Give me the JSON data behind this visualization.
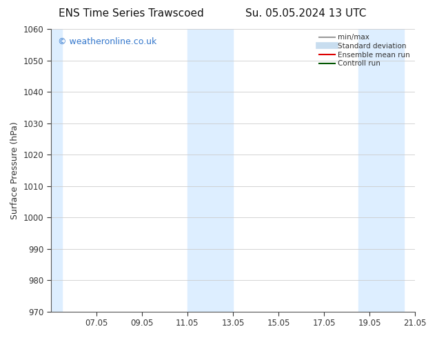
{
  "title_left": "ENS Time Series Trawscoed",
  "title_right": "Su. 05.05.2024 13 UTC",
  "ylabel": "Surface Pressure (hPa)",
  "ylim": [
    970,
    1060
  ],
  "yticks": [
    970,
    980,
    990,
    1000,
    1010,
    1020,
    1030,
    1040,
    1050,
    1060
  ],
  "x_total": 16,
  "xtick_labels": [
    "07.05",
    "09.05",
    "11.05",
    "13.05",
    "15.05",
    "17.05",
    "19.05",
    "21.05"
  ],
  "xtick_positions": [
    2,
    4,
    6,
    8,
    10,
    12,
    14,
    16
  ],
  "background_color": "#ffffff",
  "plot_bg_color": "#ffffff",
  "shaded_bands": [
    {
      "xmin": 0.0,
      "xmax": 0.5,
      "color": "#ddeeff"
    },
    {
      "xmin": 6.0,
      "xmax": 8.0,
      "color": "#ddeeff"
    },
    {
      "xmin": 13.5,
      "xmax": 15.5,
      "color": "#ddeeff"
    }
  ],
  "watermark_text": "© weatheronline.co.uk",
  "watermark_color": "#3377cc",
  "legend_items": [
    {
      "label": "min/max",
      "color": "#999999",
      "lw": 1.5
    },
    {
      "label": "Standard deviation",
      "color": "#c8ddef",
      "lw": 7
    },
    {
      "label": "Ensemble mean run",
      "color": "#dd0000",
      "lw": 1.5
    },
    {
      "label": "Controll run",
      "color": "#005500",
      "lw": 1.5
    }
  ],
  "grid_color": "#cccccc",
  "spine_color": "#555555",
  "tick_color": "#333333",
  "title_fontsize": 11,
  "label_fontsize": 9,
  "tick_fontsize": 8.5,
  "watermark_fontsize": 9,
  "legend_fontsize": 7.5
}
